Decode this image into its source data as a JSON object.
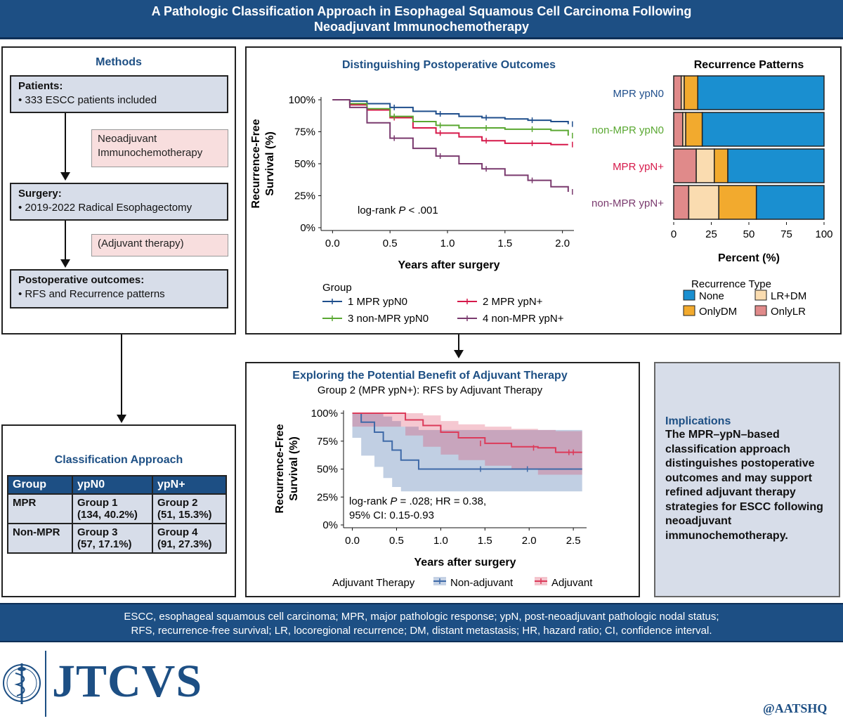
{
  "header": {
    "line1": "A Pathologic Classification Approach in Esophageal Squamous Cell Carcinoma Following",
    "line2": "Neoadjuvant Immunochemotherapy"
  },
  "methods": {
    "title": "Methods",
    "patients_head": "Patients:",
    "patients_text": "• 333 ESCC patients included",
    "neo_line1": "Neoadjuvant",
    "neo_line2": "Immunochemotherapy",
    "surgery_head": "Surgery:",
    "surgery_text": "• 2019-2022 Radical Esophagectomy",
    "adjuvant": "(Adjuvant therapy)",
    "outcomes_head": "Postoperative outcomes:",
    "outcomes_text": "• RFS and Recurrence patterns"
  },
  "classification": {
    "title": "Classification Approach",
    "headers": [
      "Group",
      "ypN0",
      "ypN+"
    ],
    "rows": [
      {
        "label": "MPR",
        "c1a": "Group 1",
        "c1b": "(134, 40.2%)",
        "c2a": "Group 2",
        "c2b": "(51, 15.3%)"
      },
      {
        "label": "Non-MPR",
        "c1a": "Group 3",
        "c1b": "(57, 17.1%)",
        "c2a": "Group 4",
        "c2b": "(91, 27.3%)"
      }
    ]
  },
  "implications": {
    "title": "Implications",
    "l1": "The MPR–ypN–based",
    "l2": "classification approach",
    "l3": "distinguishes postoperative",
    "l4": "outcomes and may support",
    "l5": "refined adjuvant therapy",
    "l6": "strategies for ESCC following",
    "l7": "neoadjuvant",
    "l8": "immunochemotherapy."
  },
  "footer": {
    "line1": "ESCC, esophageal squamous cell carcinoma; MPR, major pathologic response; ypN, post-neoadjuvant pathologic nodal status;",
    "line2": "RFS, recurrence-free survival; LR, locoregional recurrence; DM, distant metastasis; HR, hazard ratio; CI, confidence interval."
  },
  "brand": {
    "journal": "JTCVS",
    "handle": "@AATSHQ"
  },
  "colors": {
    "navy": "#1d4f84",
    "g1": "#1f4e8c",
    "g2": "#d6194a",
    "g3": "#5aa832",
    "g4": "#7a3a6e",
    "none": "#1a8fd0",
    "lrdm": "#fadcb0",
    "onlydm": "#f2aa2e",
    "onlylr": "#e08a8a",
    "nonadj": "#3f6aa8",
    "adj": "#dc3b5a"
  },
  "chart_data": [
    {
      "type": "line",
      "title": "Distinguishing Postoperative Outcomes",
      "xlabel": "Years after surgery",
      "ylabel_line1": "Recurrence-Free",
      "ylabel_line2": "Survival (%)",
      "xlim": [
        -0.1,
        2.1
      ],
      "ylim": [
        0,
        100
      ],
      "xticks": [
        "0.0",
        "0.5",
        "1.0",
        "1.5",
        "2.0"
      ],
      "yticks": [
        "0%",
        "25%",
        "50%",
        "75%",
        "100%"
      ],
      "annotation": "log-rank",
      "annotation_p": "P",
      "annotation_val": "< .001",
      "legend_title": "Group",
      "series": [
        {
          "name": "1 MPR ypN0",
          "key": "g1",
          "x": [
            0,
            0.15,
            0.3,
            0.5,
            0.7,
            0.9,
            1.1,
            1.3,
            1.5,
            1.7,
            1.9,
            2.05
          ],
          "y": [
            100,
            99,
            97,
            94,
            91,
            89,
            87,
            86,
            85,
            84,
            83,
            81
          ]
        },
        {
          "name": "2 MPR ypN+",
          "key": "g2",
          "x": [
            0,
            0.15,
            0.3,
            0.5,
            0.7,
            0.9,
            1.1,
            1.3,
            1.5,
            1.7,
            1.9,
            2.05
          ],
          "y": [
            100,
            96,
            92,
            86,
            78,
            74,
            71,
            68,
            66,
            66,
            65,
            65
          ]
        },
        {
          "name": "3 non-MPR ypN0",
          "key": "g3",
          "x": [
            0,
            0.15,
            0.3,
            0.5,
            0.7,
            0.9,
            1.1,
            1.3,
            1.5,
            1.7,
            1.9,
            2.05
          ],
          "y": [
            100,
            97,
            93,
            87,
            83,
            80,
            78,
            78,
            77,
            77,
            76,
            72
          ]
        },
        {
          "name": "4 non-MPR ypN+",
          "key": "g4",
          "x": [
            0,
            0.15,
            0.3,
            0.5,
            0.7,
            0.9,
            1.1,
            1.3,
            1.5,
            1.7,
            1.9,
            2.05
          ],
          "y": [
            100,
            94,
            82,
            70,
            62,
            56,
            50,
            46,
            41,
            37,
            32,
            28
          ]
        }
      ]
    },
    {
      "type": "bar",
      "stacked": true,
      "orientation": "horizontal",
      "title": "Recurrence Patterns",
      "xlabel": "Percent (%)",
      "xlim": [
        0,
        100
      ],
      "xticks": [
        "0",
        "25",
        "50",
        "75",
        "100"
      ],
      "categories": [
        "MPR ypN0",
        "non-MPR ypN0",
        "MPR ypN+",
        "non-MPR ypN+"
      ],
      "category_keys": [
        "g1",
        "g3",
        "g2",
        "g4"
      ],
      "legend_title": "Recurrence Type",
      "series": [
        {
          "name": "OnlyLR",
          "key": "onlylr",
          "values": [
            5,
            6,
            15,
            10
          ]
        },
        {
          "name": "LR+DM",
          "key": "lrdm",
          "values": [
            2,
            2,
            12,
            20
          ]
        },
        {
          "name": "OnlyDM",
          "key": "onlydm",
          "values": [
            9,
            11,
            9,
            25
          ]
        },
        {
          "name": "None",
          "key": "none",
          "values": [
            84,
            81,
            64,
            45
          ]
        }
      ],
      "legend_order": [
        "None",
        "LR+DM",
        "OnlyDM",
        "OnlyLR"
      ]
    },
    {
      "type": "line",
      "title": "Exploring the Potential Benefit of Adjuvant Therapy",
      "subtitle": "Group 2 (MPR ypN+): RFS by Adjuvant Therapy",
      "xlabel": "Years after surgery",
      "ylabel_line1": "Recurrence-Free",
      "ylabel_line2": "Survival (%)",
      "xlim": [
        -0.1,
        2.65
      ],
      "ylim": [
        0,
        100
      ],
      "xticks": [
        "0.0",
        "0.5",
        "1.0",
        "1.5",
        "2.0",
        "2.5"
      ],
      "yticks": [
        "0%",
        "25%",
        "50%",
        "75%",
        "100%"
      ],
      "annotation_l1a": "log-rank",
      "annotation_p": "P",
      "annotation_l1b": "= .028; HR = 0.38,",
      "annotation_l2": "95% CI: 0.15-0.93",
      "legend_title": "Adjuvant Therapy",
      "series": [
        {
          "name": "Non-adjuvant",
          "key": "nonadj",
          "x": [
            0,
            0.1,
            0.25,
            0.35,
            0.45,
            0.55,
            0.75,
            2.6
          ],
          "y": [
            100,
            92,
            83,
            75,
            67,
            58,
            50,
            50
          ],
          "ci_low": [
            100,
            78,
            62,
            52,
            42,
            34,
            30,
            30
          ],
          "ci_high": [
            100,
            100,
            100,
            97,
            93,
            88,
            85,
            85
          ]
        },
        {
          "name": "Adjuvant",
          "key": "adj",
          "x": [
            0,
            0.6,
            0.8,
            1.0,
            1.2,
            1.5,
            1.8,
            2.1,
            2.3,
            2.6
          ],
          "y": [
            100,
            94,
            89,
            83,
            78,
            73,
            70,
            69,
            65,
            65
          ],
          "ci_low": [
            100,
            88,
            80,
            70,
            63,
            58,
            53,
            50,
            45,
            45
          ],
          "ci_high": [
            100,
            100,
            98,
            93,
            90,
            88,
            86,
            85,
            84,
            84
          ]
        }
      ]
    }
  ]
}
